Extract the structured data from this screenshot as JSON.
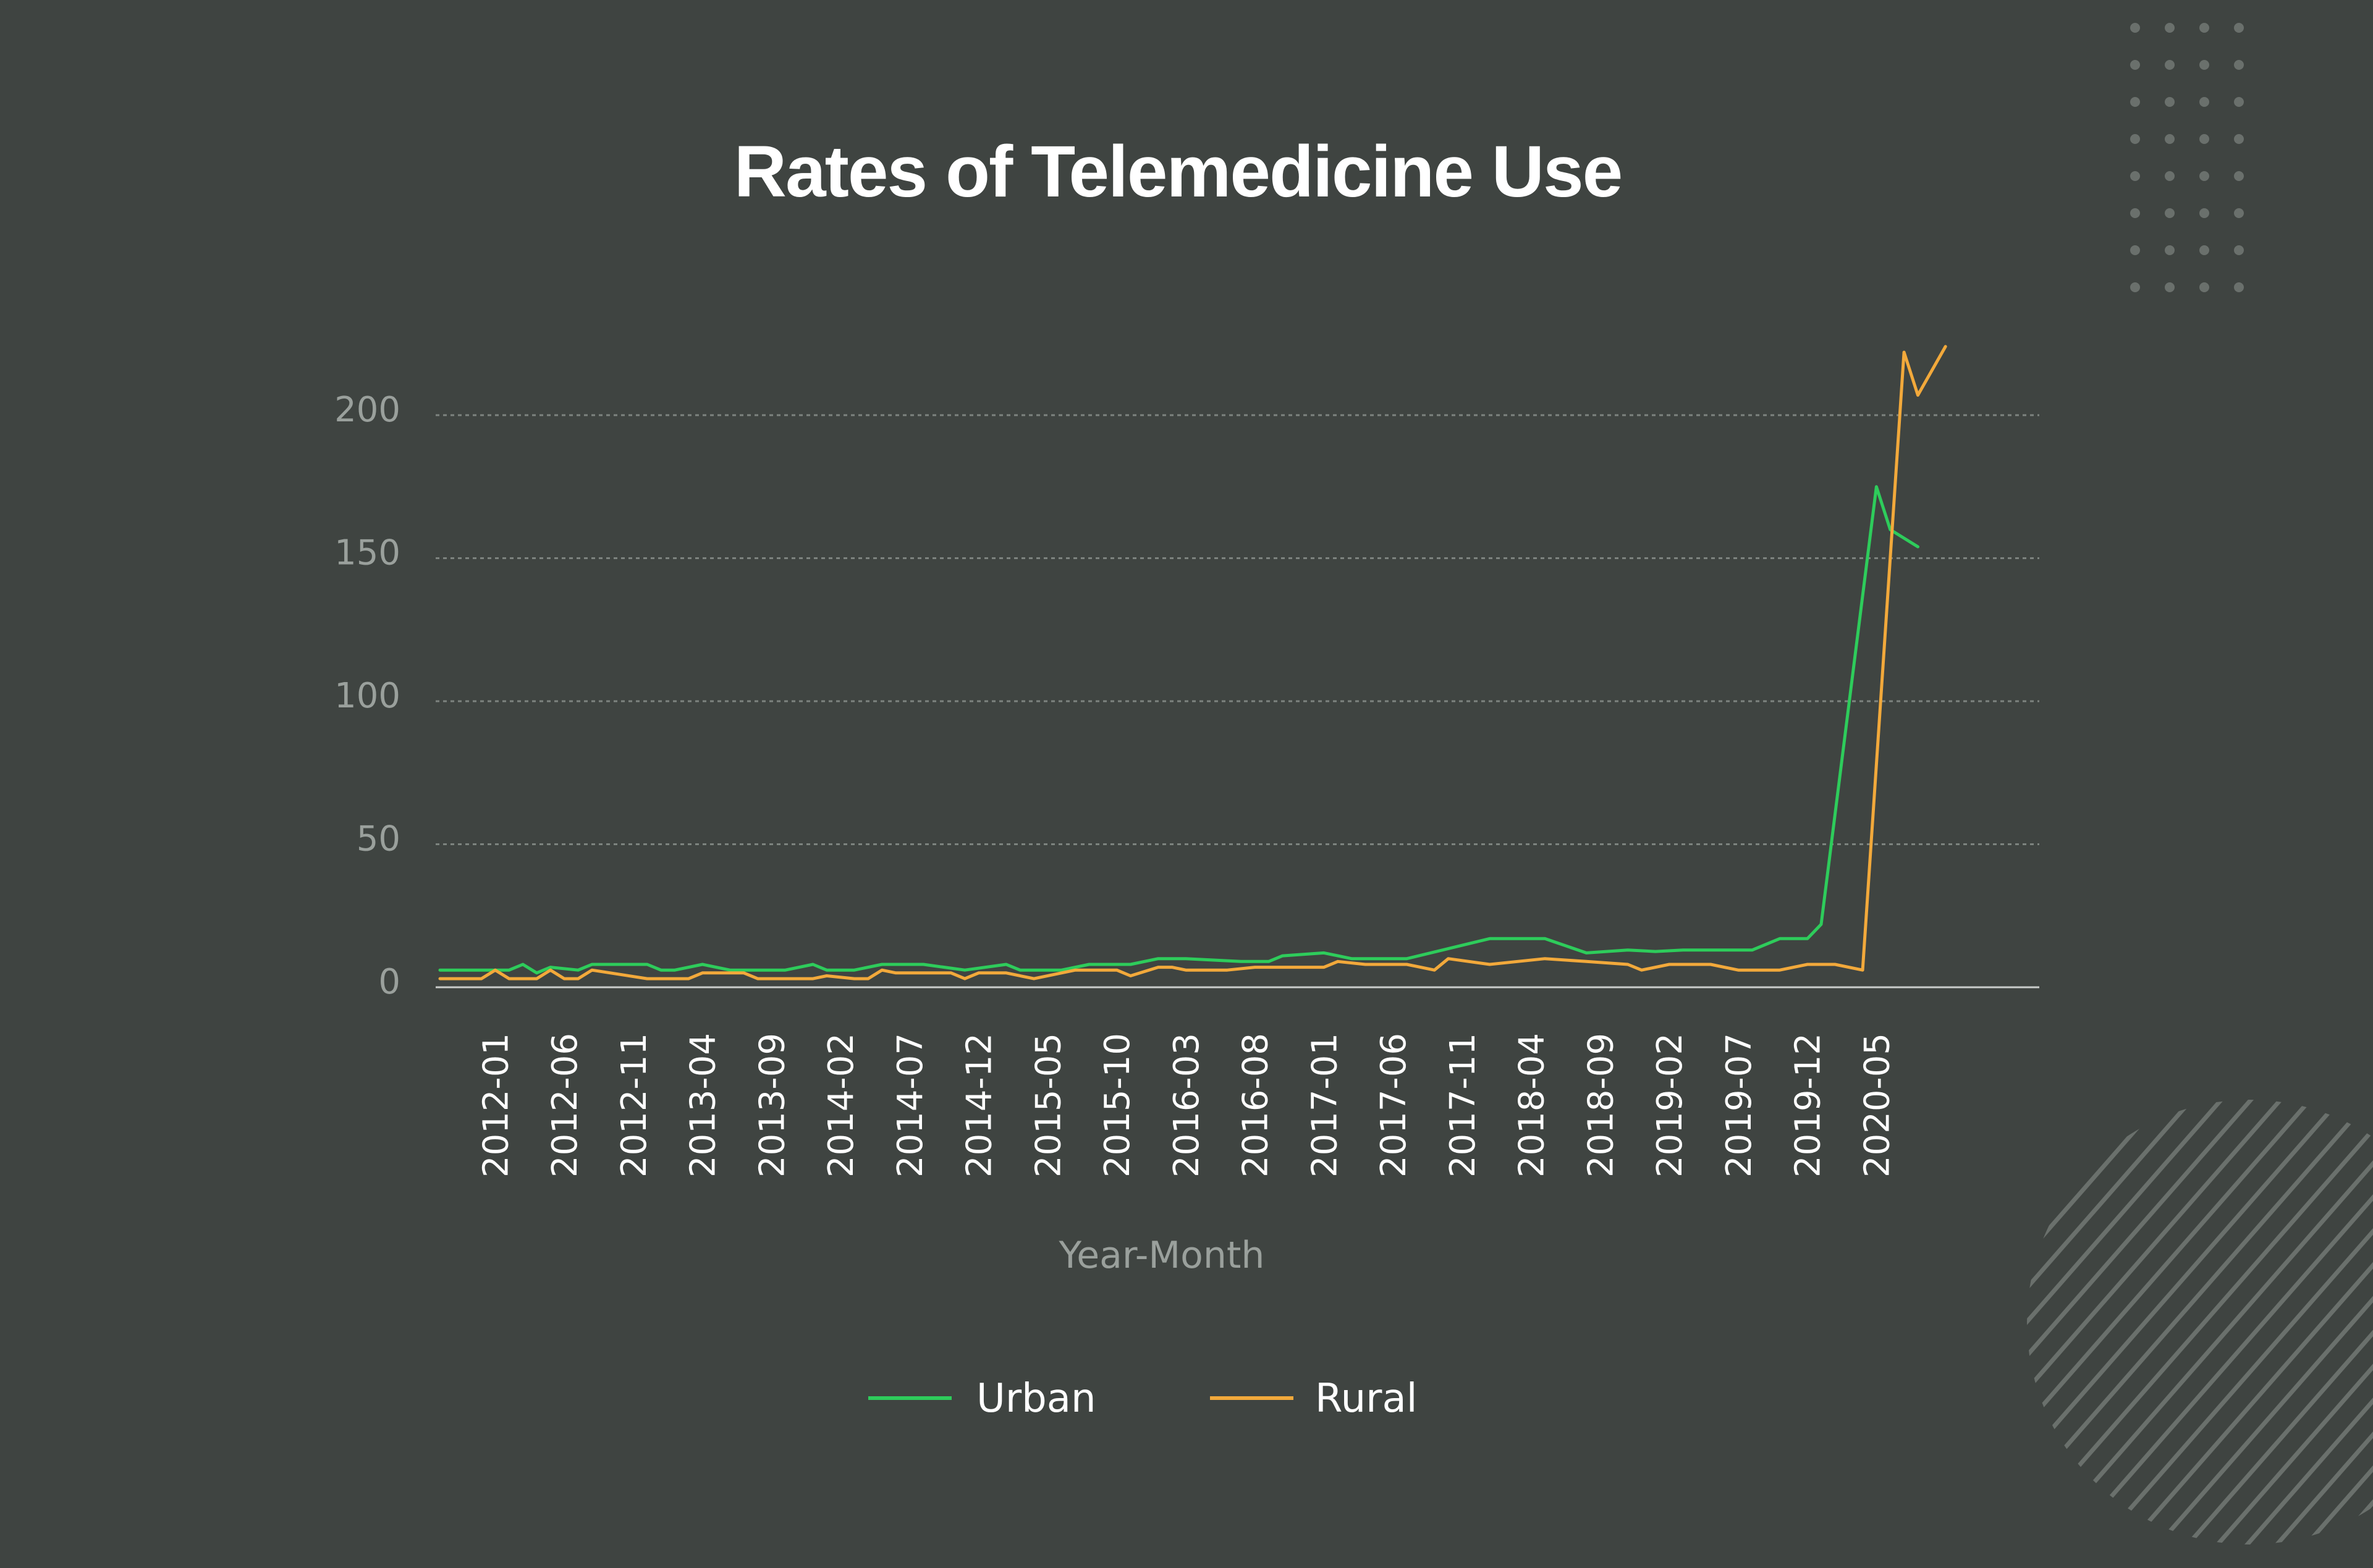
{
  "chart_data": {
    "type": "line",
    "title": "Rates of Telemedicine Use",
    "xlabel": "Year-Month",
    "ylabel": "",
    "ylim": [
      0,
      200
    ],
    "yticks": [
      0,
      50,
      100,
      150,
      200
    ],
    "x_tick_labels": [
      "2012-01",
      "2012-06",
      "2012-11",
      "2013-04",
      "2013-09",
      "2014-02",
      "2014-07",
      "2014-12",
      "2015-05",
      "2015-10",
      "2016-03",
      "2016-08",
      "2017-01",
      "2017-06",
      "2017-11",
      "2018-04",
      "2018-09",
      "2019-02",
      "2019-07",
      "2019-12",
      "2020-05"
    ],
    "x_range": [
      "2011-09",
      "2020-10"
    ],
    "grid": true,
    "legend_position": "bottom",
    "series": [
      {
        "name": "Urban",
        "color": "#2ecc5b",
        "points": [
          {
            "x": "2011-09",
            "y": 6
          },
          {
            "x": "2011-11",
            "y": 6
          },
          {
            "x": "2012-01",
            "y": 6
          },
          {
            "x": "2012-02",
            "y": 6
          },
          {
            "x": "2012-03",
            "y": 8
          },
          {
            "x": "2012-04",
            "y": 5
          },
          {
            "x": "2012-05",
            "y": 7
          },
          {
            "x": "2012-07",
            "y": 6
          },
          {
            "x": "2012-08",
            "y": 8
          },
          {
            "x": "2012-12",
            "y": 8
          },
          {
            "x": "2013-01",
            "y": 6
          },
          {
            "x": "2013-02",
            "y": 6
          },
          {
            "x": "2013-04",
            "y": 8
          },
          {
            "x": "2013-06",
            "y": 6
          },
          {
            "x": "2013-10",
            "y": 6
          },
          {
            "x": "2013-12",
            "y": 8
          },
          {
            "x": "2014-01",
            "y": 6
          },
          {
            "x": "2014-03",
            "y": 6
          },
          {
            "x": "2014-05",
            "y": 8
          },
          {
            "x": "2014-08",
            "y": 8
          },
          {
            "x": "2014-11",
            "y": 6
          },
          {
            "x": "2015-02",
            "y": 8
          },
          {
            "x": "2015-03",
            "y": 6
          },
          {
            "x": "2015-06",
            "y": 6
          },
          {
            "x": "2015-08",
            "y": 8
          },
          {
            "x": "2015-11",
            "y": 8
          },
          {
            "x": "2016-01",
            "y": 10
          },
          {
            "x": "2016-03",
            "y": 10
          },
          {
            "x": "2016-07",
            "y": 9
          },
          {
            "x": "2016-09",
            "y": 9
          },
          {
            "x": "2016-10",
            "y": 11
          },
          {
            "x": "2017-01",
            "y": 12
          },
          {
            "x": "2017-03",
            "y": 10
          },
          {
            "x": "2017-07",
            "y": 10
          },
          {
            "x": "2018-01",
            "y": 17
          },
          {
            "x": "2018-05",
            "y": 17
          },
          {
            "x": "2018-08",
            "y": 12
          },
          {
            "x": "2018-11",
            "y": 13
          },
          {
            "x": "2019-01",
            "y": 12.5
          },
          {
            "x": "2019-03",
            "y": 13
          },
          {
            "x": "2019-08",
            "y": 13
          },
          {
            "x": "2019-10",
            "y": 17
          },
          {
            "x": "2019-12",
            "y": 17
          },
          {
            "x": "2020-01",
            "y": 22
          },
          {
            "x": "2020-05",
            "y": 175
          },
          {
            "x": "2020-06",
            "y": 160
          },
          {
            "x": "2020-08",
            "y": 154
          }
        ]
      },
      {
        "name": "Rural",
        "color": "#f2a93b",
        "points": [
          {
            "x": "2011-09",
            "y": 3
          },
          {
            "x": "2011-12",
            "y": 3
          },
          {
            "x": "2012-01",
            "y": 6
          },
          {
            "x": "2012-02",
            "y": 3
          },
          {
            "x": "2012-04",
            "y": 3
          },
          {
            "x": "2012-05",
            "y": 6
          },
          {
            "x": "2012-06",
            "y": 3
          },
          {
            "x": "2012-07",
            "y": 3
          },
          {
            "x": "2012-08",
            "y": 6
          },
          {
            "x": "2012-12",
            "y": 3
          },
          {
            "x": "2013-03",
            "y": 3
          },
          {
            "x": "2013-04",
            "y": 5
          },
          {
            "x": "2013-07",
            "y": 5
          },
          {
            "x": "2013-08",
            "y": 3
          },
          {
            "x": "2013-12",
            "y": 3
          },
          {
            "x": "2014-01",
            "y": 4
          },
          {
            "x": "2014-03",
            "y": 3
          },
          {
            "x": "2014-04",
            "y": 3
          },
          {
            "x": "2014-05",
            "y": 6
          },
          {
            "x": "2014-06",
            "y": 5
          },
          {
            "x": "2014-10",
            "y": 5
          },
          {
            "x": "2014-11",
            "y": 3
          },
          {
            "x": "2014-12",
            "y": 5
          },
          {
            "x": "2015-02",
            "y": 5
          },
          {
            "x": "2015-04",
            "y": 3
          },
          {
            "x": "2015-07",
            "y": 6
          },
          {
            "x": "2015-10",
            "y": 6
          },
          {
            "x": "2015-11",
            "y": 4
          },
          {
            "x": "2016-01",
            "y": 7
          },
          {
            "x": "2016-02",
            "y": 7
          },
          {
            "x": "2016-03",
            "y": 6
          },
          {
            "x": "2016-06",
            "y": 6
          },
          {
            "x": "2016-08",
            "y": 7
          },
          {
            "x": "2017-01",
            "y": 7
          },
          {
            "x": "2017-02",
            "y": 9
          },
          {
            "x": "2017-04",
            "y": 8
          },
          {
            "x": "2017-07",
            "y": 8
          },
          {
            "x": "2017-09",
            "y": 6
          },
          {
            "x": "2017-10",
            "y": 10
          },
          {
            "x": "2018-01",
            "y": 8
          },
          {
            "x": "2018-05",
            "y": 10
          },
          {
            "x": "2018-08",
            "y": 9
          },
          {
            "x": "2018-11",
            "y": 8
          },
          {
            "x": "2018-12",
            "y": 6
          },
          {
            "x": "2019-02",
            "y": 8
          },
          {
            "x": "2019-05",
            "y": 8
          },
          {
            "x": "2019-07",
            "y": 6
          },
          {
            "x": "2019-10",
            "y": 6
          },
          {
            "x": "2019-12",
            "y": 8
          },
          {
            "x": "2020-02",
            "y": 8
          },
          {
            "x": "2020-04",
            "y": 6
          },
          {
            "x": "2020-07",
            "y": 222
          },
          {
            "x": "2020-08",
            "y": 207
          },
          {
            "x": "2020-10",
            "y": 224
          }
        ]
      }
    ]
  },
  "colors": {
    "background": "#3f4441",
    "gridline": "#7d837f",
    "baseline": "#c9ccca",
    "decoration": "#6a706c"
  }
}
